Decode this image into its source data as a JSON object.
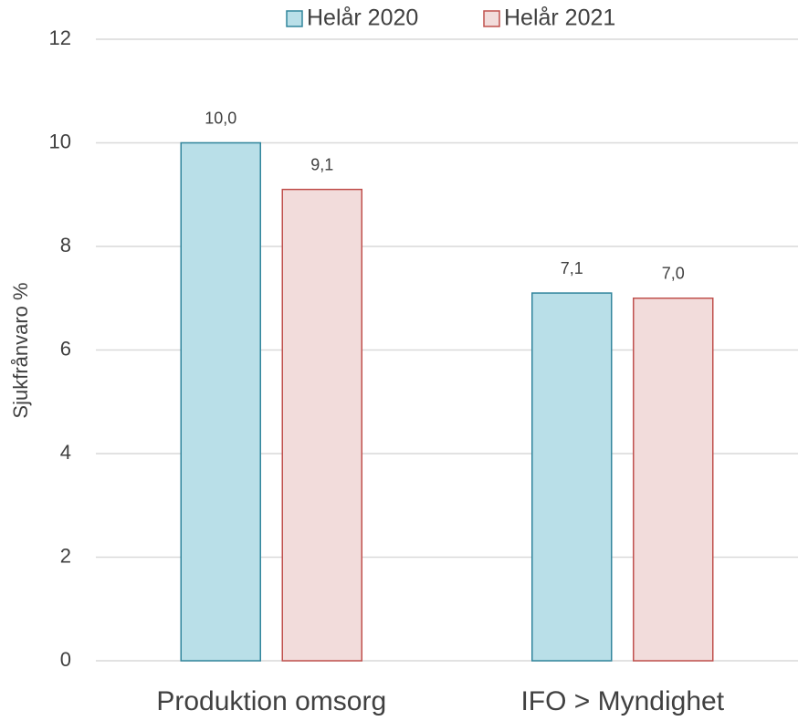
{
  "chart_data": {
    "type": "bar",
    "y_label": "Sjukfrånvaro %",
    "categories": [
      "Produktion omsorg",
      "IFO > Myndighet"
    ],
    "series": [
      {
        "name": "Helår 2020",
        "color": "#b9dfe8",
        "edge_color": "#31859c",
        "values": [
          10.0,
          7.1
        ],
        "value_labels": [
          "10,0",
          "7,1"
        ]
      },
      {
        "name": "Helår 2021",
        "color": "#f2dcdb",
        "edge_color": "#c0504d",
        "values": [
          9.1,
          7.0
        ],
        "value_labels": [
          "9,1",
          "7,0"
        ]
      }
    ],
    "ylim": [
      0,
      12
    ],
    "yticks": [
      0,
      2,
      4,
      6,
      8,
      10,
      12
    ],
    "grid": true,
    "legend": "top"
  }
}
